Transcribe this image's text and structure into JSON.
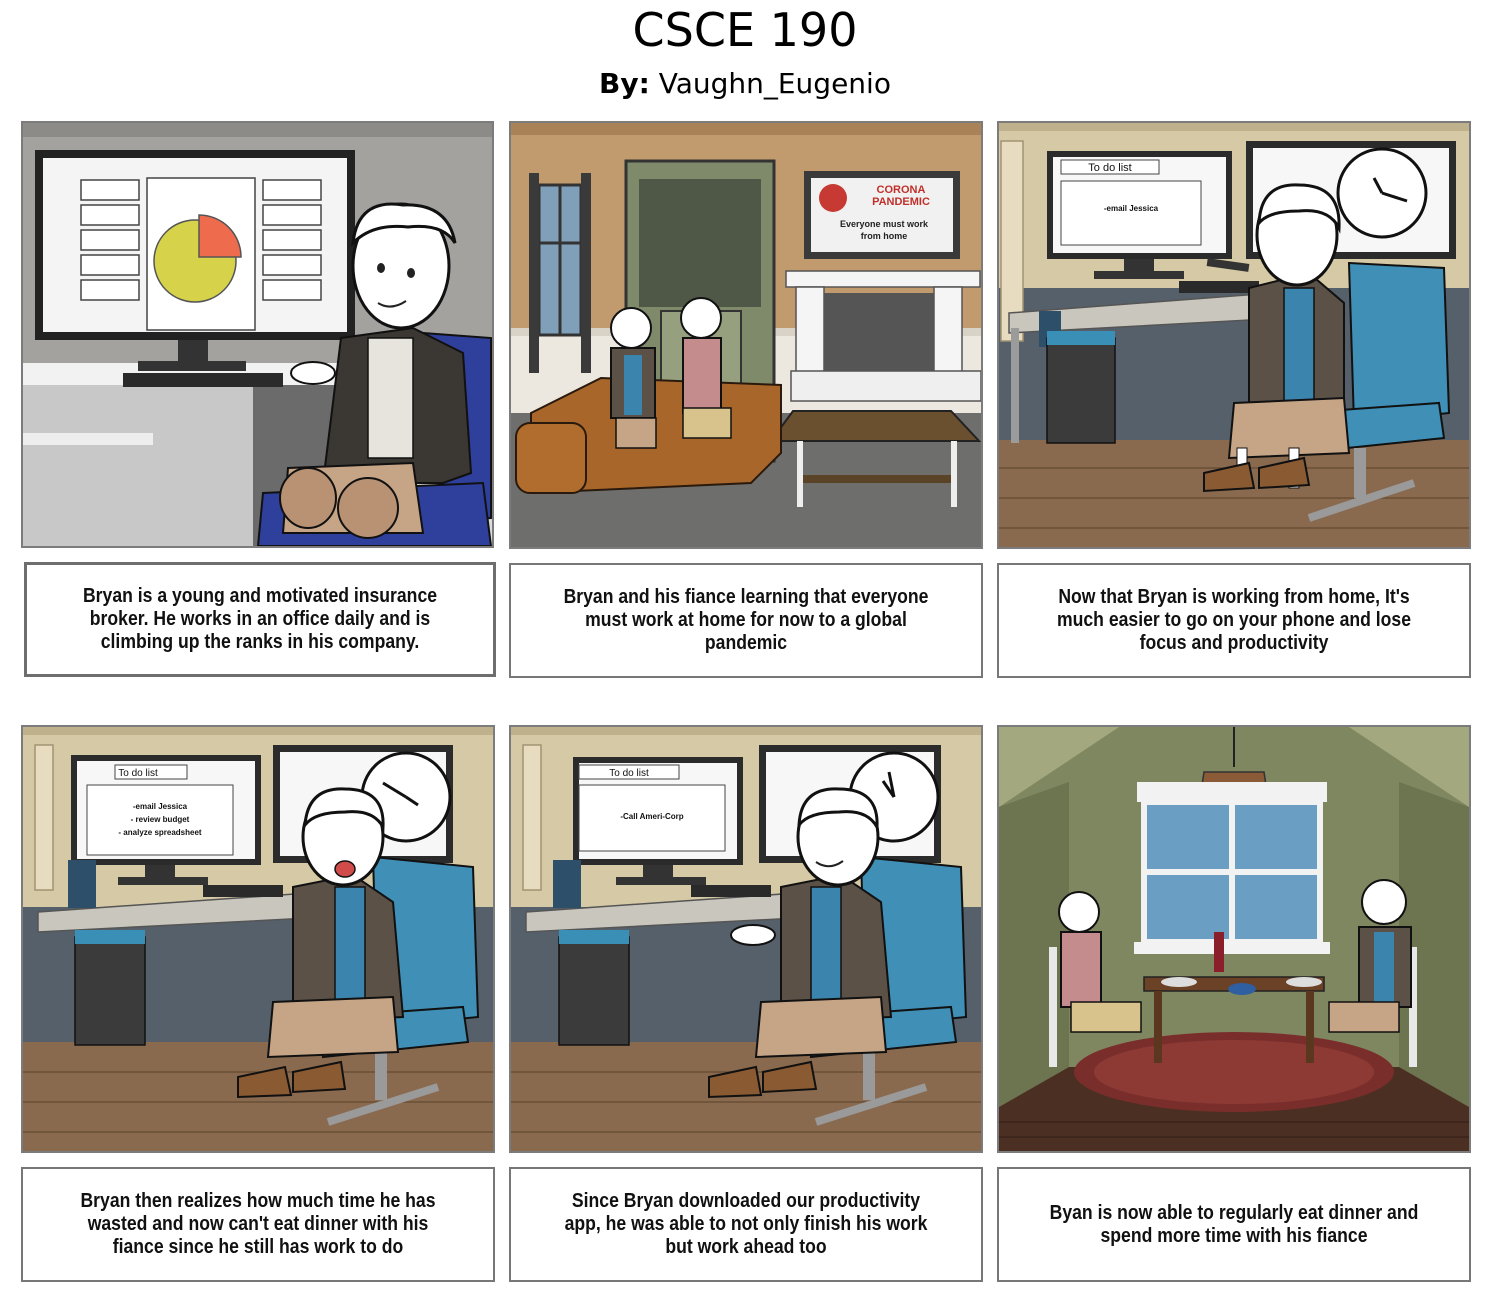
{
  "header": {
    "title": "CSCE 190",
    "by_label": "By:",
    "author": "Vaughn_Eugenio"
  },
  "panels": [
    {
      "caption": "Bryan is a young and motivated insurance broker. He works in an office daily and is climbing up the ranks in his company."
    },
    {
      "tv_line1": "CORONA",
      "tv_line2": "PANDEMIC",
      "tv_line3": "Everyone must work",
      "tv_line4": "from home",
      "caption": "Bryan and his fiance learning that everyone must work at home for now to a global pandemic"
    },
    {
      "todo_title": "To do list",
      "todo_items": [
        "-email Jessica"
      ],
      "caption": "Now that Bryan is working from home, It's much easier to go on your phone and lose focus and productivity"
    },
    {
      "todo_title": "To do list",
      "todo_items": [
        "-email Jessica",
        "- review budget",
        "- analyze spreadsheet"
      ],
      "caption": "Bryan then realizes how much time he has wasted and now can't eat dinner with his fiance since he still has work to do"
    },
    {
      "todo_title": "To do list",
      "todo_items": [
        "-Call Ameri-Corp"
      ],
      "caption": "Since Bryan downloaded our productivity app, he was able to not only finish his work but work ahead too"
    },
    {
      "caption": "Byan is now able to regularly eat dinner and spend more time with his fiance"
    }
  ],
  "colors": {
    "office_wall": "#a3a29f",
    "living_wall": "#c19b6e",
    "home_wall": "#d6c9a5",
    "floor_wood": "#8a6a4e",
    "chair_blue": "#3f8fb6",
    "dining_wall": "#7f8760"
  }
}
